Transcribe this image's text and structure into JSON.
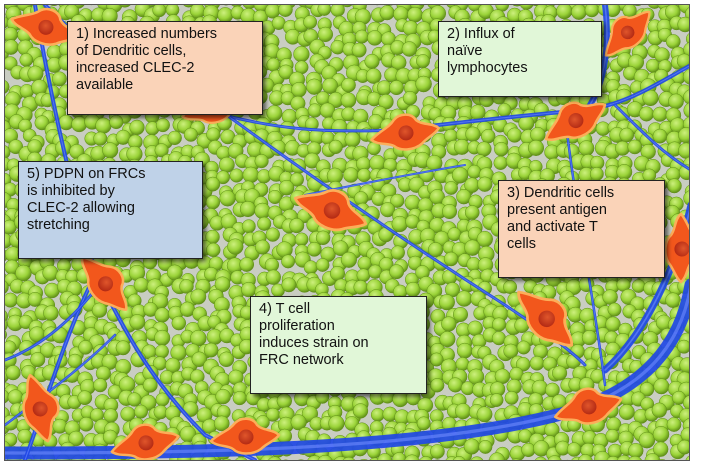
{
  "colors": {
    "background": "#c9cdc2",
    "cell_light": "#cdf07e",
    "cell_mid": "#9ad338",
    "cell_dark": "#5f8e17",
    "frc_fiber": "#1f48e6",
    "dendritic_cell_fill": "#f2571c",
    "dendritic_cell_outline": "#fcae59",
    "dendritic_nucleus": "#c8311a",
    "box_peach": "#fad3b8",
    "box_green": "#e1f7d8",
    "box_blue": "#bfd2e8"
  },
  "labels": {
    "step1": [
      "1) Increased numbers",
      "of Dendritic cells,",
      "increased CLEC-2",
      "available"
    ],
    "step2": [
      "2) Influx of",
      "naïve",
      "lymphocytes"
    ],
    "step3": [
      "3) Dendritic cells",
      "present antigen",
      "and activate T",
      "cells"
    ],
    "step4": [
      "4) T cell",
      "proliferation",
      "induces strain on",
      "FRC network"
    ],
    "step5": [
      "5) PDPN on FRCs",
      "is inhibited by",
      "CLEC-2 allowing",
      "stretching"
    ]
  }
}
